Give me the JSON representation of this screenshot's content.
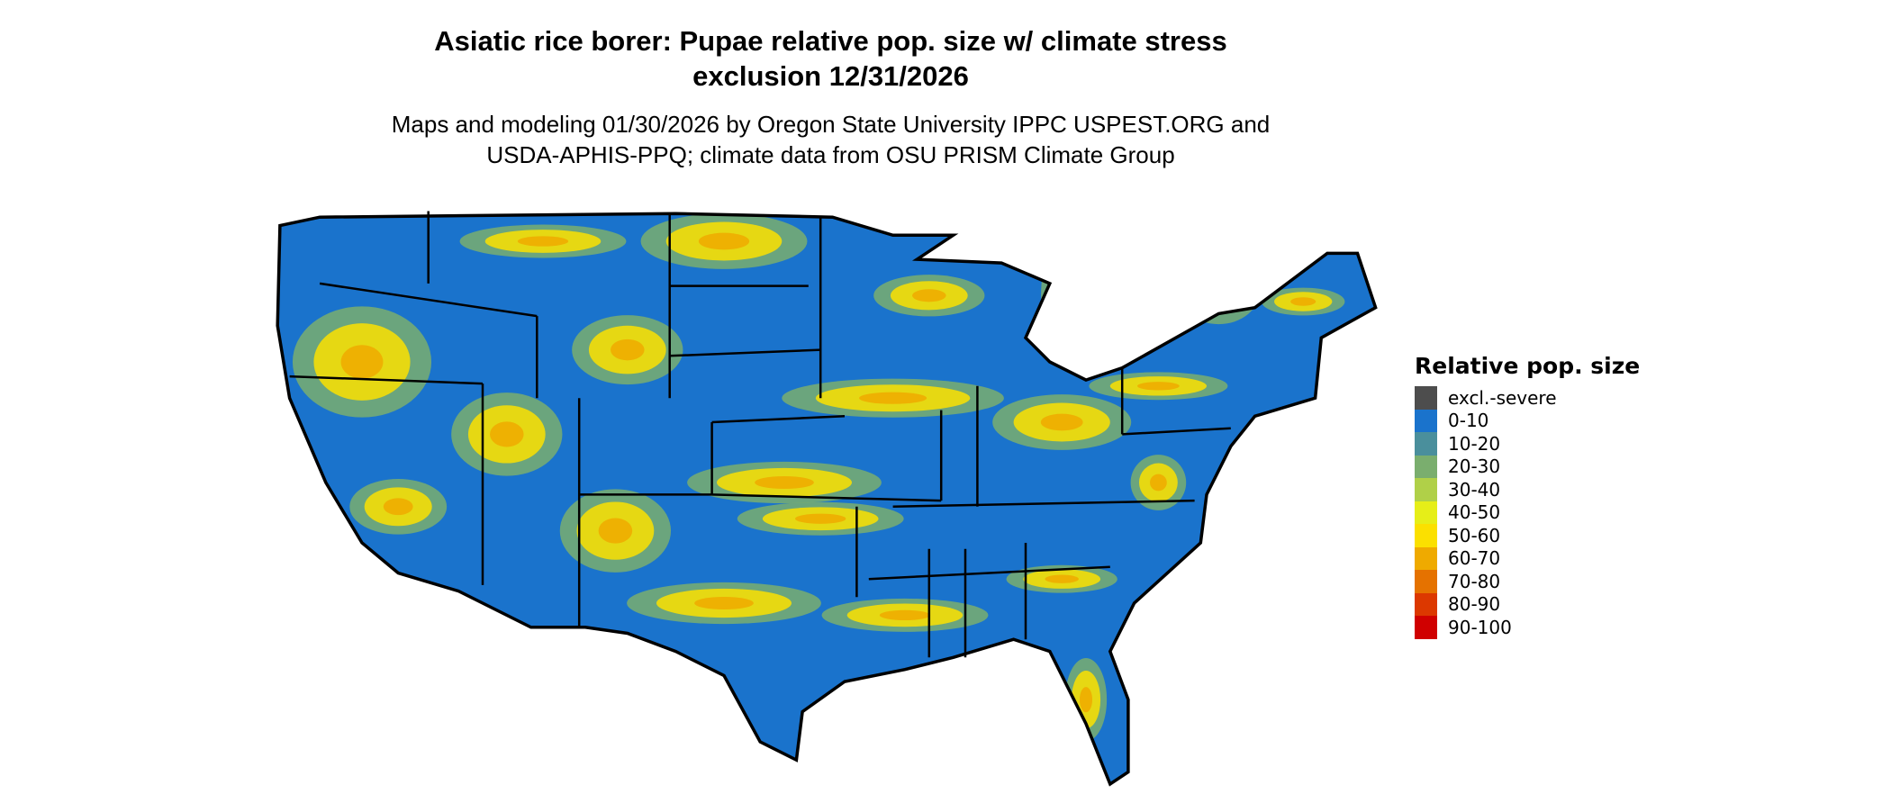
{
  "title_line1": "Asiatic rice borer: Pupae relative pop. size w/ climate stress",
  "title_line2": "exclusion 12/31/2026",
  "subtitle_line1": "Maps and modeling 01/30/2026 by Oregon State University IPPC USPEST.ORG and",
  "subtitle_line2": "USDA-APHIS-PPQ; climate data from OSU PRISM Climate Group",
  "map": {
    "region": "Contiguous United States",
    "dominant_class": "0-10",
    "state_borders": true
  },
  "legend": {
    "title": "Relative pop. size",
    "items": [
      {
        "label": "excl.-severe",
        "color": "#4d4d4d"
      },
      {
        "label": "0-10",
        "color": "#1a73cc"
      },
      {
        "label": "10-20",
        "color": "#4a8f9c"
      },
      {
        "label": "20-30",
        "color": "#7aae6e"
      },
      {
        "label": "30-40",
        "color": "#b0d048"
      },
      {
        "label": "40-50",
        "color": "#e6ee18"
      },
      {
        "label": "50-60",
        "color": "#fbe000"
      },
      {
        "label": "60-70",
        "color": "#efaa00"
      },
      {
        "label": "70-80",
        "color": "#e57200"
      },
      {
        "label": "80-90",
        "color": "#dc3800"
      },
      {
        "label": "90-100",
        "color": "#d00000"
      }
    ]
  }
}
